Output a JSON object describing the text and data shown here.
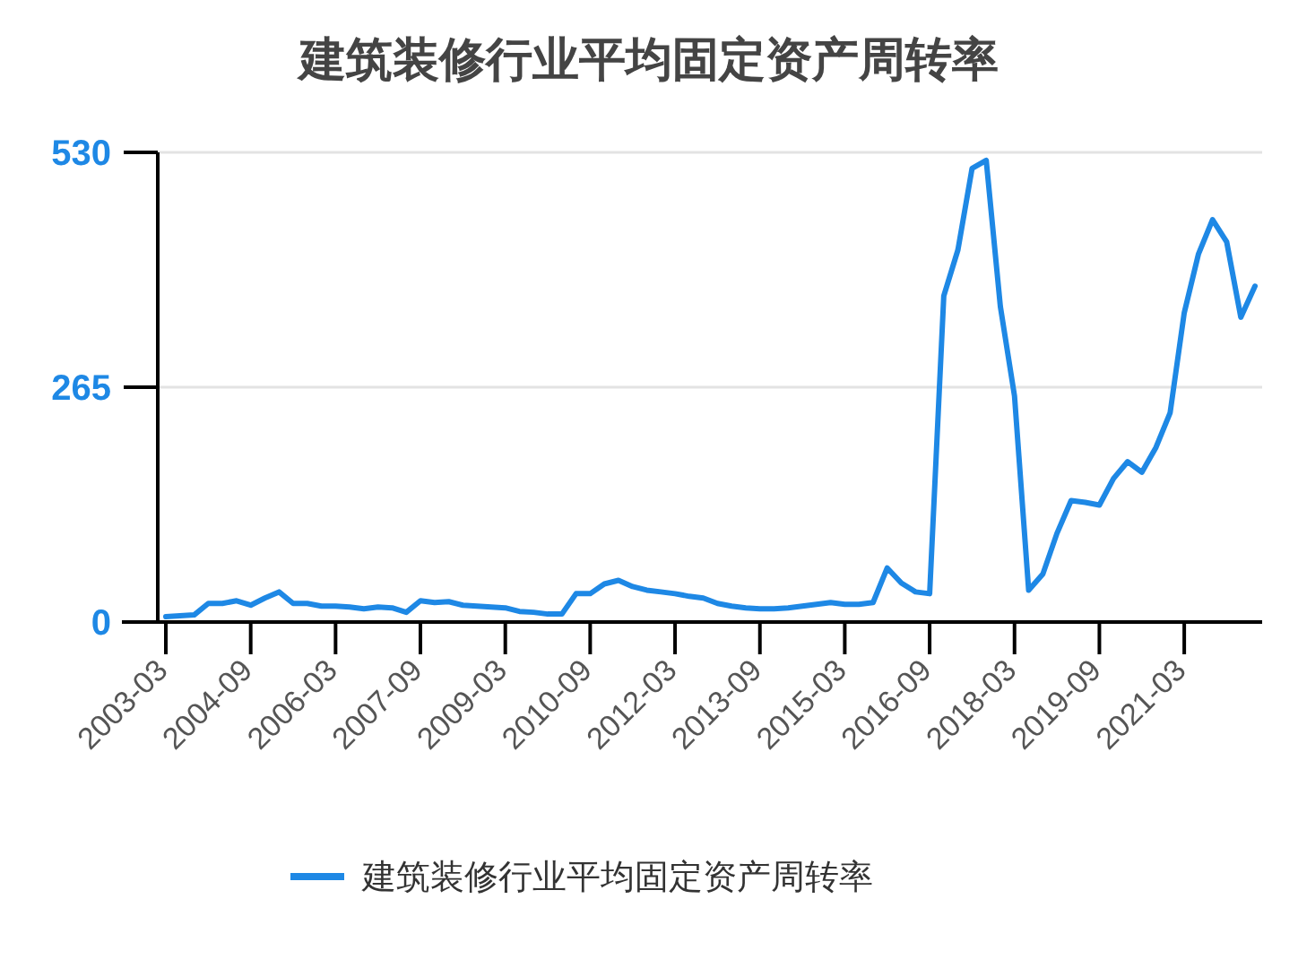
{
  "chart_data": {
    "type": "line",
    "title": "建筑装修行业平均固定资产周转率",
    "categories": [
      "2003-03",
      null,
      null,
      null,
      null,
      null,
      "2004-09",
      null,
      null,
      null,
      null,
      null,
      "2006-03",
      null,
      null,
      null,
      null,
      null,
      "2007-09",
      null,
      null,
      null,
      null,
      null,
      "2009-03",
      null,
      null,
      null,
      null,
      null,
      "2010-09",
      null,
      null,
      null,
      null,
      null,
      "2012-03",
      null,
      null,
      null,
      null,
      null,
      "2013-09",
      null,
      null,
      null,
      null,
      null,
      "2015-03",
      null,
      null,
      null,
      null,
      null,
      "2016-09",
      null,
      null,
      null,
      null,
      null,
      "2018-03",
      null,
      null,
      null,
      null,
      null,
      "2019-09",
      null,
      null,
      null,
      null,
      null,
      "2021-03",
      null,
      null,
      null,
      null,
      null
    ],
    "series": [
      {
        "name": "建筑装修行业平均固定资产周转率",
        "color": "#1e88e5",
        "values": [
          6,
          7,
          8,
          21,
          21,
          24,
          19,
          27,
          34,
          21,
          21,
          18,
          18,
          17,
          15,
          17,
          16,
          11,
          24,
          22,
          23,
          19,
          18,
          17,
          16,
          12,
          11,
          9,
          9,
          32,
          32,
          43,
          47,
          40,
          36,
          34,
          32,
          29,
          27,
          21,
          18,
          16,
          15,
          15,
          16,
          18,
          20,
          22,
          20,
          20,
          22,
          61,
          44,
          34,
          32,
          368,
          420,
          512,
          521,
          356,
          255,
          36,
          54,
          100,
          137,
          135,
          132,
          162,
          181,
          169,
          197,
          236,
          349,
          415,
          454,
          429,
          344,
          379
        ]
      }
    ],
    "ylim": [
      0,
      530
    ],
    "yticks": [
      0,
      265,
      530
    ],
    "grid": "y",
    "legend": "bottom",
    "marker": "none",
    "line_style": "solid"
  }
}
